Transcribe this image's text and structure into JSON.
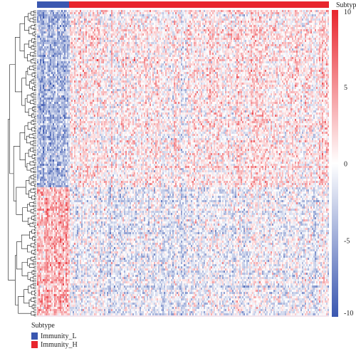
{
  "chart_data": {
    "type": "heatmap",
    "title": "",
    "annotation": {
      "name": "Subtype",
      "groups": [
        {
          "label": "Immunity_L",
          "color": "#3a57b0",
          "fraction": 0.11
        },
        {
          "label": "Immunity_H",
          "color": "#e8252d",
          "fraction": 0.89
        }
      ]
    },
    "colorbar": {
      "ticks": [
        10,
        5,
        0,
        -5,
        -10
      ],
      "range": [
        -10,
        10
      ],
      "high_color": "#e8252d",
      "mid_color": "#ffffff",
      "low_color": "#3a57b0"
    },
    "row_dendrogram": true,
    "legend": {
      "title": "Subtype",
      "items": [
        {
          "label": "Immunity_L",
          "color": "#3a57b0"
        },
        {
          "label": "Immunity_H",
          "color": "#e8252d"
        }
      ]
    }
  }
}
